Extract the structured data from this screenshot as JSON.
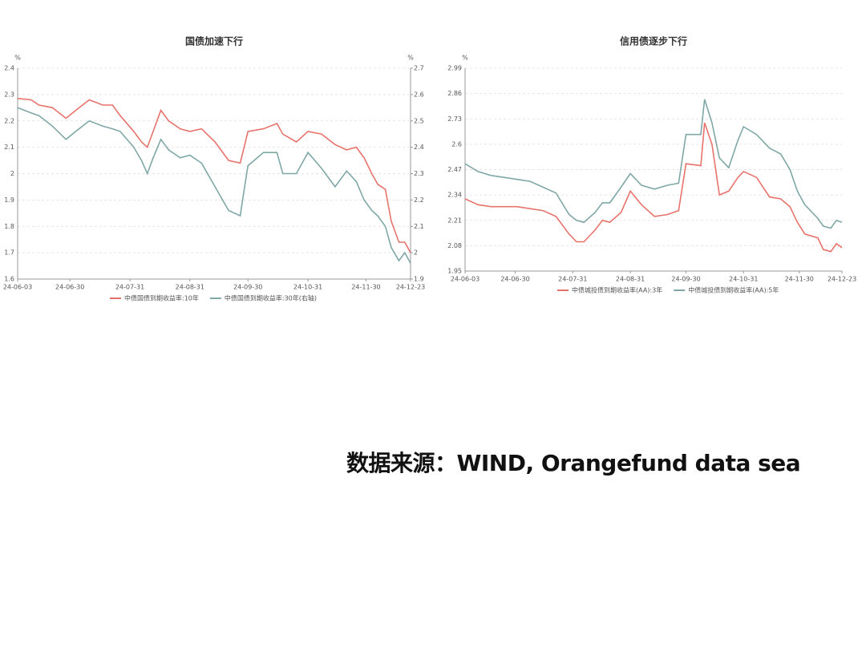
{
  "source": "数据来源：WIND, Orangefund data sea",
  "chart_data": [
    {
      "type": "line",
      "title": "国债加速下行",
      "y_unit": "%",
      "y2_unit": "%",
      "x": [
        "24-06-03",
        "24-06-10",
        "24-06-14",
        "24-06-21",
        "24-06-28",
        "24-07-03",
        "24-07-10",
        "24-07-17",
        "24-07-22",
        "24-07-26",
        "24-08-02",
        "24-08-06",
        "24-08-09",
        "24-08-12",
        "24-08-16",
        "24-08-20",
        "24-08-26",
        "24-08-31",
        "24-09-06",
        "24-09-13",
        "24-09-20",
        "24-09-26",
        "24-09-27",
        "24-09-30",
        "24-10-08",
        "24-10-15",
        "24-10-18",
        "24-10-25",
        "24-10-31",
        "24-11-07",
        "24-11-14",
        "24-11-20",
        "24-11-25",
        "24-11-29",
        "24-12-03",
        "24-12-06",
        "24-12-10",
        "24-12-13",
        "24-12-17",
        "24-12-20",
        "24-12-23"
      ],
      "xlim": [
        "24-06-03",
        "24-12-23"
      ],
      "xticks": [
        "24-06-03",
        "24-06-30",
        "24-07-31",
        "24-08-31",
        "24-09-30",
        "24-10-31",
        "24-11-30",
        "24-12-23"
      ],
      "ylim": [
        1.6,
        2.4
      ],
      "yticks": [
        1.6,
        1.7,
        1.8,
        1.9,
        2,
        2.1,
        2.2,
        2.3,
        2.4
      ],
      "y2lim": [
        1.9,
        2.7
      ],
      "y2ticks": [
        1.9,
        2,
        2.1,
        2.2,
        2.3,
        2.4,
        2.5,
        2.6,
        2.7
      ],
      "grid": true,
      "legend": "bottom",
      "series": [
        {
          "name": "中债国债到期收益率:10年",
          "color": "#e8736c",
          "values": [
            2.285,
            2.28,
            2.26,
            2.25,
            2.21,
            2.24,
            2.28,
            2.26,
            2.26,
            2.22,
            2.16,
            2.12,
            2.1,
            2.16,
            2.24,
            2.2,
            2.17,
            2.16,
            2.17,
            2.12,
            2.05,
            2.04,
            2.07,
            2.16,
            2.17,
            2.19,
            2.15,
            2.12,
            2.16,
            2.15,
            2.11,
            2.09,
            2.1,
            2.06,
            2,
            1.96,
            1.94,
            1.82,
            1.74,
            1.74,
            1.7
          ]
        },
        {
          "name": "中债国债到期收益率:30年(右轴)",
          "color": "#7fa7a6",
          "axis": "y2",
          "values": [
            2.55,
            2.53,
            2.52,
            2.48,
            2.43,
            2.46,
            2.5,
            2.48,
            2.47,
            2.46,
            2.4,
            2.35,
            2.3,
            2.36,
            2.43,
            2.39,
            2.36,
            2.37,
            2.34,
            2.25,
            2.16,
            2.14,
            2.19,
            2.33,
            2.38,
            2.38,
            2.3,
            2.3,
            2.38,
            2.32,
            2.25,
            2.31,
            2.27,
            2.2,
            2.16,
            2.14,
            2.1,
            2.02,
            1.97,
            2,
            1.96
          ]
        }
      ]
    },
    {
      "type": "line",
      "title": "信用债逐步下行",
      "y_unit": "%",
      "x": [
        "24-06-03",
        "24-06-10",
        "24-06-17",
        "24-06-24",
        "24-07-01",
        "24-07-08",
        "24-07-15",
        "24-07-22",
        "24-07-29",
        "24-08-02",
        "24-08-06",
        "24-08-12",
        "24-08-16",
        "24-08-20",
        "24-08-26",
        "24-08-31",
        "24-09-06",
        "24-09-13",
        "24-09-20",
        "24-09-26",
        "24-09-30",
        "24-10-08",
        "24-10-10",
        "24-10-14",
        "24-10-18",
        "24-10-23",
        "24-10-28",
        "24-10-31",
        "24-11-07",
        "24-11-14",
        "24-11-20",
        "24-11-25",
        "24-11-29",
        "24-12-03",
        "24-12-10",
        "24-12-13",
        "24-12-17",
        "24-12-20",
        "24-12-23"
      ],
      "xlim": [
        "24-06-03",
        "24-12-23"
      ],
      "xticks": [
        "24-06-03",
        "24-06-30",
        "24-07-31",
        "24-08-31",
        "24-09-30",
        "24-10-31",
        "24-11-30",
        "24-12-23"
      ],
      "ylim": [
        1.95,
        2.99
      ],
      "yticks": [
        1.95,
        2.08,
        2.21,
        2.34,
        2.47,
        2.6,
        2.73,
        2.86,
        2.99
      ],
      "grid": true,
      "legend": "bottom",
      "series": [
        {
          "name": "中债城投债到期收益率(AA):3年",
          "color": "#e8736c",
          "values": [
            2.32,
            2.29,
            2.28,
            2.28,
            2.28,
            2.27,
            2.26,
            2.23,
            2.14,
            2.1,
            2.1,
            2.16,
            2.21,
            2.2,
            2.25,
            2.36,
            2.29,
            2.23,
            2.24,
            2.26,
            2.5,
            2.49,
            2.71,
            2.6,
            2.34,
            2.36,
            2.43,
            2.46,
            2.43,
            2.33,
            2.32,
            2.28,
            2.2,
            2.14,
            2.12,
            2.06,
            2.05,
            2.09,
            2.07
          ]
        },
        {
          "name": "中债城投债到期收益率(AA):5年",
          "color": "#7fa7a6",
          "values": [
            2.5,
            2.46,
            2.44,
            2.43,
            2.42,
            2.41,
            2.38,
            2.35,
            2.24,
            2.21,
            2.2,
            2.25,
            2.3,
            2.3,
            2.38,
            2.45,
            2.39,
            2.37,
            2.39,
            2.4,
            2.65,
            2.65,
            2.83,
            2.71,
            2.53,
            2.48,
            2.62,
            2.69,
            2.65,
            2.58,
            2.55,
            2.47,
            2.36,
            2.29,
            2.22,
            2.18,
            2.17,
            2.21,
            2.2
          ]
        }
      ]
    }
  ]
}
